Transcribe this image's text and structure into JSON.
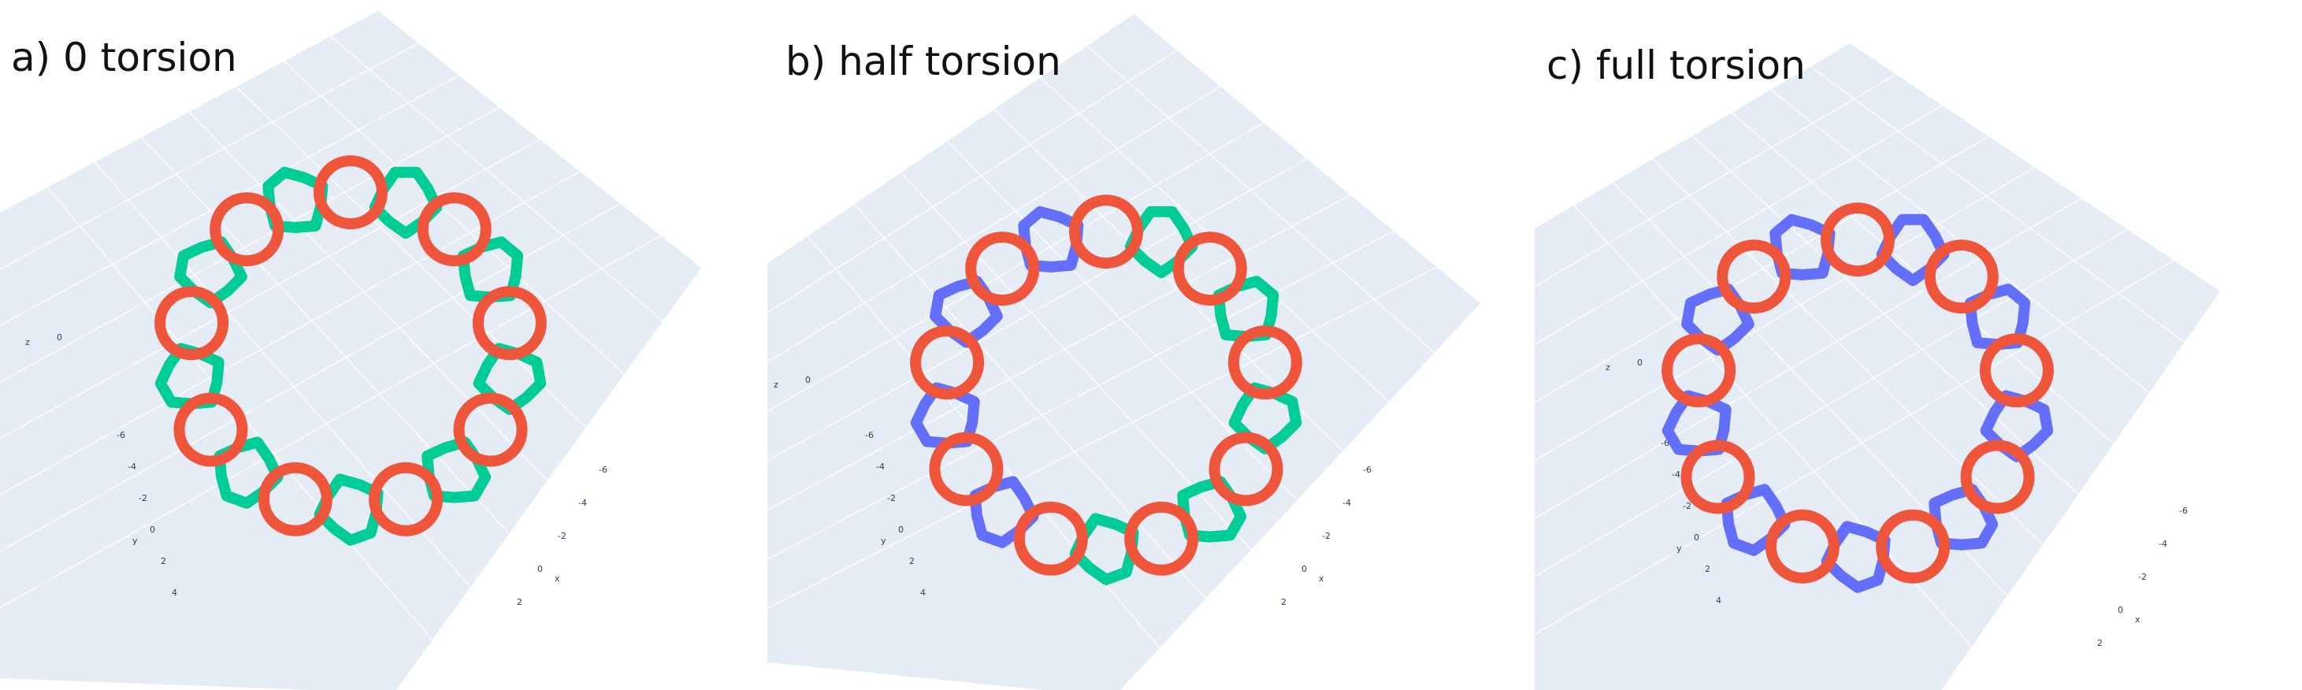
{
  "colors": {
    "background": "#ffffff",
    "scene_floor": "#e5ecf6",
    "grid": "#ffffff",
    "red": "#ef553b",
    "green": "#00cc96",
    "blue": "#636efa",
    "text": "#111111",
    "tick": "#2a3f5f"
  },
  "chart_data": [
    {
      "type": "scatter3d",
      "title": "a) 0 torsion",
      "axes": {
        "x": {
          "label": "x",
          "ticks": [
            "-6",
            "-4",
            "-2",
            "0",
            "2"
          ]
        },
        "y": {
          "label": "y",
          "ticks": [
            "-6",
            "-4",
            "-2",
            "0",
            "2",
            "4"
          ]
        },
        "z": {
          "label": "z",
          "ticks": [
            "0"
          ]
        }
      },
      "grid": true,
      "series": [
        {
          "color": "red",
          "shape": "circle",
          "count": 9
        },
        {
          "color": "green",
          "shape": "knot",
          "count": 9
        }
      ]
    },
    {
      "type": "scatter3d",
      "title": "b) half torsion",
      "axes": {
        "x": {
          "label": "x",
          "ticks": [
            "-6",
            "-4",
            "-2",
            "0",
            "2"
          ]
        },
        "y": {
          "label": "y",
          "ticks": [
            "-6",
            "-4",
            "-2",
            "0",
            "2",
            "4"
          ]
        },
        "z": {
          "label": "z",
          "ticks": [
            "0"
          ]
        }
      },
      "grid": true,
      "series": [
        {
          "color": "red",
          "shape": "circle",
          "count": 9
        },
        {
          "color": "green",
          "shape": "knot",
          "count": 5
        },
        {
          "color": "blue",
          "shape": "knot",
          "count": 4
        }
      ]
    },
    {
      "type": "scatter3d",
      "title": "c) full torsion",
      "axes": {
        "x": {
          "label": "x",
          "ticks": [
            "-6",
            "-4",
            "-2",
            "0",
            "2"
          ]
        },
        "y": {
          "label": "y",
          "ticks": [
            "-6",
            "-4",
            "-2",
            "0",
            "2",
            "4"
          ]
        },
        "z": {
          "label": "z",
          "ticks": [
            "0"
          ]
        }
      },
      "grid": true,
      "series": [
        {
          "color": "red",
          "shape": "circle",
          "count": 9
        },
        {
          "color": "blue",
          "shape": "knot",
          "count": 9
        }
      ]
    }
  ]
}
